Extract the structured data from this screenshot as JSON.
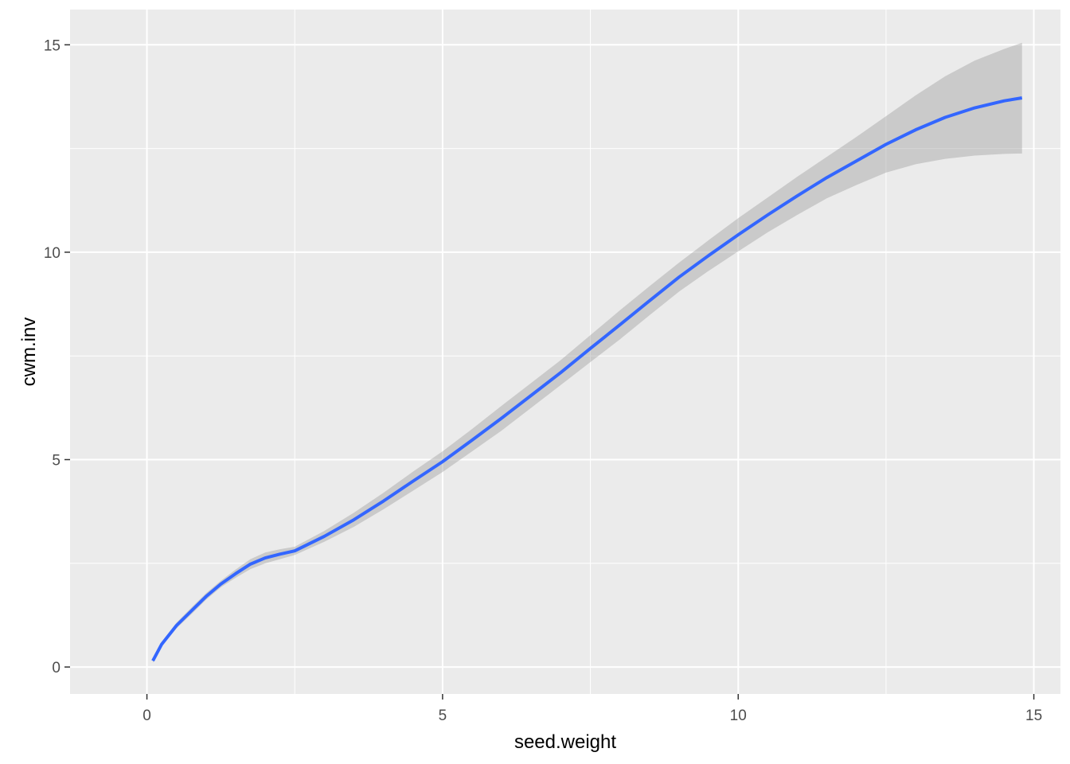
{
  "chart_data": {
    "type": "line",
    "title": "",
    "xlabel": "seed.weight",
    "ylabel": "cwm.inv",
    "xlim": [
      -1.3,
      15.45
    ],
    "ylim": [
      -0.65,
      15.85
    ],
    "x_ticks": [
      0,
      5,
      10,
      15
    ],
    "x_tick_labels": [
      "0",
      "5",
      "10",
      "15"
    ],
    "y_ticks": [
      0,
      5,
      10,
      15
    ],
    "y_tick_labels": [
      "0",
      "5",
      "10",
      "15"
    ],
    "x_minor": [
      2.5,
      7.5,
      12.5
    ],
    "y_minor": [
      2.5,
      7.5,
      12.5
    ],
    "grid": true,
    "series": [
      {
        "color": "#3366FF",
        "x": [
          0.1,
          0.25,
          0.5,
          0.75,
          1.0,
          1.25,
          1.5,
          1.75,
          2.0,
          2.25,
          2.5,
          3.0,
          3.5,
          4.0,
          4.5,
          5.0,
          5.5,
          6.0,
          6.5,
          7.0,
          7.5,
          8.0,
          8.5,
          9.0,
          9.5,
          10.0,
          10.5,
          11.0,
          11.5,
          12.0,
          12.5,
          13.0,
          13.5,
          14.0,
          14.5,
          14.8
        ],
        "y": [
          0.15,
          0.55,
          1.0,
          1.35,
          1.7,
          2.0,
          2.25,
          2.48,
          2.63,
          2.72,
          2.8,
          3.15,
          3.55,
          4.0,
          4.48,
          4.95,
          5.47,
          6.0,
          6.55,
          7.1,
          7.68,
          8.25,
          8.83,
          9.4,
          9.92,
          10.42,
          10.9,
          11.36,
          11.8,
          12.2,
          12.6,
          12.95,
          13.25,
          13.48,
          13.65,
          13.72
        ],
        "ci_lower": [
          0.1,
          0.5,
          0.93,
          1.27,
          1.62,
          1.92,
          2.15,
          2.36,
          2.5,
          2.6,
          2.7,
          3.02,
          3.38,
          3.8,
          4.25,
          4.7,
          5.2,
          5.7,
          6.25,
          6.8,
          7.35,
          7.9,
          8.48,
          9.05,
          9.55,
          10.02,
          10.48,
          10.9,
          11.3,
          11.62,
          11.92,
          12.12,
          12.25,
          12.33,
          12.37,
          12.38
        ],
        "ci_upper": [
          0.2,
          0.6,
          1.07,
          1.43,
          1.78,
          2.08,
          2.35,
          2.6,
          2.76,
          2.84,
          2.9,
          3.28,
          3.72,
          4.2,
          4.71,
          5.2,
          5.74,
          6.3,
          6.85,
          7.4,
          8.0,
          8.6,
          9.18,
          9.75,
          10.29,
          10.82,
          11.32,
          11.82,
          12.3,
          12.78,
          13.28,
          13.78,
          14.24,
          14.62,
          14.9,
          15.05
        ]
      }
    ]
  }
}
